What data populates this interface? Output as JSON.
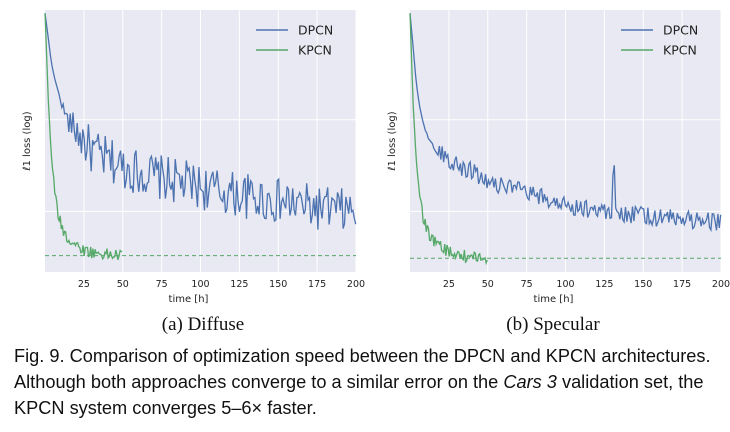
{
  "colors": {
    "plot_background": "#e8e9f2",
    "grid": "#ffffff",
    "dpcn": "#4c72b0",
    "kpcn": "#55a868"
  },
  "chart_data": [
    {
      "type": "line",
      "panel_label": "(a) Diffuse",
      "xlabel": "time [h]",
      "ylabel": "ℓ1 loss (log)",
      "x_ticks": [
        25,
        50,
        75,
        100,
        125,
        150,
        175,
        200
      ],
      "xlim": [
        0,
        200
      ],
      "log_scale_y": true,
      "grid": true,
      "legend": "top-right",
      "reference_line": {
        "style": "dashed",
        "color": "kpcn"
      },
      "series": [
        {
          "name": "DPCN",
          "x": [
            0,
            2,
            4,
            6,
            8,
            10,
            12,
            15,
            20,
            25,
            30,
            40,
            50,
            60,
            75,
            90,
            100,
            110,
            125,
            140,
            150,
            160,
            170,
            175,
            180,
            190,
            200
          ],
          "y": [
            1.0,
            0.7,
            0.48,
            0.38,
            0.32,
            0.27,
            0.23,
            0.19,
            0.165,
            0.14,
            0.12,
            0.105,
            0.095,
            0.088,
            0.08,
            0.074,
            0.07,
            0.066,
            0.062,
            0.058,
            0.056,
            0.054,
            0.052,
            0.051,
            0.05,
            0.049,
            0.048
          ],
          "noise": "high"
        },
        {
          "name": "KPCN",
          "x": [
            0,
            1,
            2,
            4,
            6,
            8,
            10,
            12,
            15,
            20,
            25,
            30,
            35,
            40,
            45,
            50
          ],
          "y": [
            1.0,
            0.55,
            0.28,
            0.12,
            0.07,
            0.05,
            0.042,
            0.037,
            0.033,
            0.03,
            0.028,
            0.027,
            0.0265,
            0.026,
            0.0258,
            0.0256
          ]
        }
      ]
    },
    {
      "type": "line",
      "panel_label": "(b) Specular",
      "xlabel": "time [h]",
      "ylabel": "ℓ1 loss (log)",
      "x_ticks": [
        25,
        50,
        75,
        100,
        125,
        150,
        175,
        200
      ],
      "xlim": [
        0,
        200
      ],
      "log_scale_y": true,
      "grid": true,
      "legend": "top-right",
      "reference_line": {
        "style": "dashed",
        "color": "kpcn"
      },
      "series": [
        {
          "name": "DPCN",
          "x": [
            0,
            2,
            4,
            6,
            8,
            10,
            12,
            15,
            20,
            25,
            30,
            40,
            50,
            60,
            75,
            90,
            100,
            110,
            125,
            130,
            131,
            132,
            135,
            140,
            150,
            160,
            175,
            190,
            200
          ],
          "y": [
            1.0,
            0.6,
            0.35,
            0.25,
            0.2,
            0.17,
            0.15,
            0.13,
            0.12,
            0.11,
            0.1,
            0.09,
            0.08,
            0.072,
            0.065,
            0.058,
            0.055,
            0.052,
            0.05,
            0.049,
            0.17,
            0.049,
            0.048,
            0.047,
            0.046,
            0.045,
            0.044,
            0.043,
            0.042
          ],
          "noise": "medium"
        },
        {
          "name": "KPCN",
          "x": [
            0,
            1,
            2,
            4,
            6,
            8,
            10,
            12,
            15,
            20,
            25,
            30,
            35,
            40,
            45,
            50
          ],
          "y": [
            1.0,
            0.5,
            0.25,
            0.11,
            0.065,
            0.048,
            0.04,
            0.036,
            0.032,
            0.029,
            0.027,
            0.026,
            0.0255,
            0.025,
            0.0248,
            0.0246
          ]
        }
      ]
    }
  ],
  "caption": {
    "prefix": "Fig. 9.   Comparison of optimization speed between the DPCN and KPCN architectures. Although both approaches converge to a similar error on the ",
    "italic": "Cars 3",
    "suffix": " validation set, the KPCN system converges 5–6× faster."
  }
}
